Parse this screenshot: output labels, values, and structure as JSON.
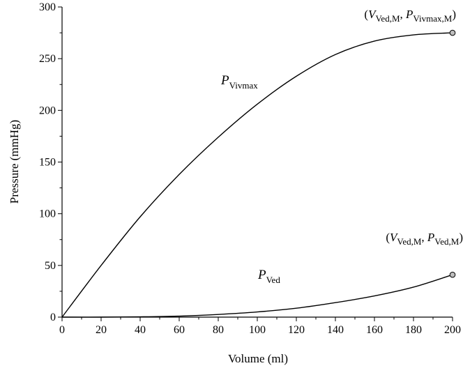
{
  "chart_data": {
    "type": "line",
    "xlabel": "Volume (ml)",
    "ylabel": "Pressure (mmHg)",
    "xlim": [
      0,
      200
    ],
    "ylim": [
      0,
      300
    ],
    "x_ticks": [
      0,
      20,
      40,
      60,
      80,
      100,
      120,
      140,
      160,
      180,
      200
    ],
    "y_ticks": [
      0,
      50,
      100,
      150,
      200,
      250,
      300
    ],
    "grid": false,
    "series": [
      {
        "name": "P_Vivmax",
        "label_main": "P",
        "label_sub": "Vivmax",
        "x": [
          0,
          20,
          40,
          60,
          80,
          100,
          120,
          140,
          160,
          180,
          200
        ],
        "y": [
          0,
          50,
          97,
          138,
          174,
          206,
          233,
          254,
          267,
          273,
          275
        ]
      },
      {
        "name": "P_Ved",
        "label_main": "P",
        "label_sub": "Ved",
        "x": [
          0,
          20,
          40,
          60,
          80,
          100,
          120,
          140,
          160,
          180,
          200
        ],
        "y": [
          0,
          0,
          0.3,
          1,
          2.6,
          5,
          8.6,
          14,
          20.5,
          29,
          41
        ]
      }
    ],
    "annotations": [
      {
        "target": "P_Vivmax",
        "x": 200,
        "y": 275,
        "parts": [
          "(",
          "V",
          "Ved,M",
          ", ",
          "P",
          "Vivmax,M",
          ")"
        ]
      },
      {
        "target": "P_Ved",
        "x": 200,
        "y": 41,
        "parts": [
          "(",
          "V",
          "Ved,M",
          ", ",
          "P",
          "Ved,M",
          ")"
        ]
      }
    ]
  }
}
